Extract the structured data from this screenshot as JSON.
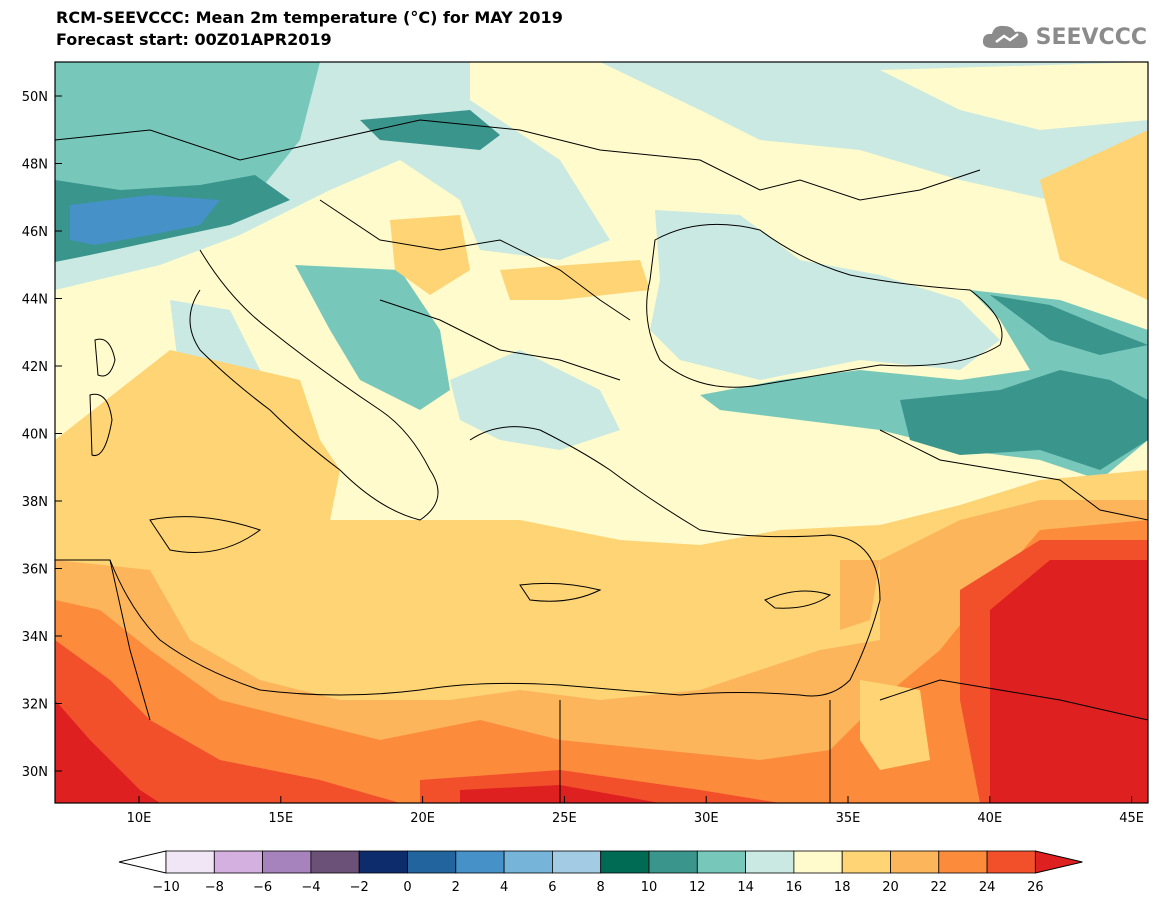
{
  "header": {
    "title_line1": "RCM-SEEVCCC: Mean 2m temperature (°C) for MAY 2019",
    "title_line2": "Forecast start: 00Z01APR2019"
  },
  "logo": {
    "text": "SEEVCCC",
    "icon": "cloud-icon",
    "color": "#8b8b8b"
  },
  "map": {
    "lat_labels": [
      "50N",
      "48N",
      "46N",
      "44N",
      "42N",
      "40N",
      "38N",
      "36N",
      "34N",
      "32N",
      "30N"
    ],
    "lon_labels": [
      "10E",
      "15E",
      "20E",
      "25E",
      "30E",
      "35E",
      "40E",
      "45E"
    ]
  },
  "colorbar": {
    "tick_labels": [
      "-10",
      "-8",
      "-6",
      "-4",
      "-2",
      "0",
      "2",
      "4",
      "6",
      "8",
      "10",
      "12",
      "14",
      "16",
      "18",
      "20",
      "22",
      "24",
      "26"
    ],
    "colors": [
      "#ffffff",
      "#f0e6f5",
      "#d4b0e0",
      "#a783bd",
      "#6b5078",
      "#0d2c6b",
      "#21649e",
      "#4591c8",
      "#76b4da",
      "#a3cbe3",
      "#006b55",
      "#3a958c",
      "#77c8bb",
      "#c9e9e2",
      "#fffbcc",
      "#fed474",
      "#fdb55c",
      "#fd8b3c",
      "#f2502b",
      "#de2020"
    ]
  }
}
